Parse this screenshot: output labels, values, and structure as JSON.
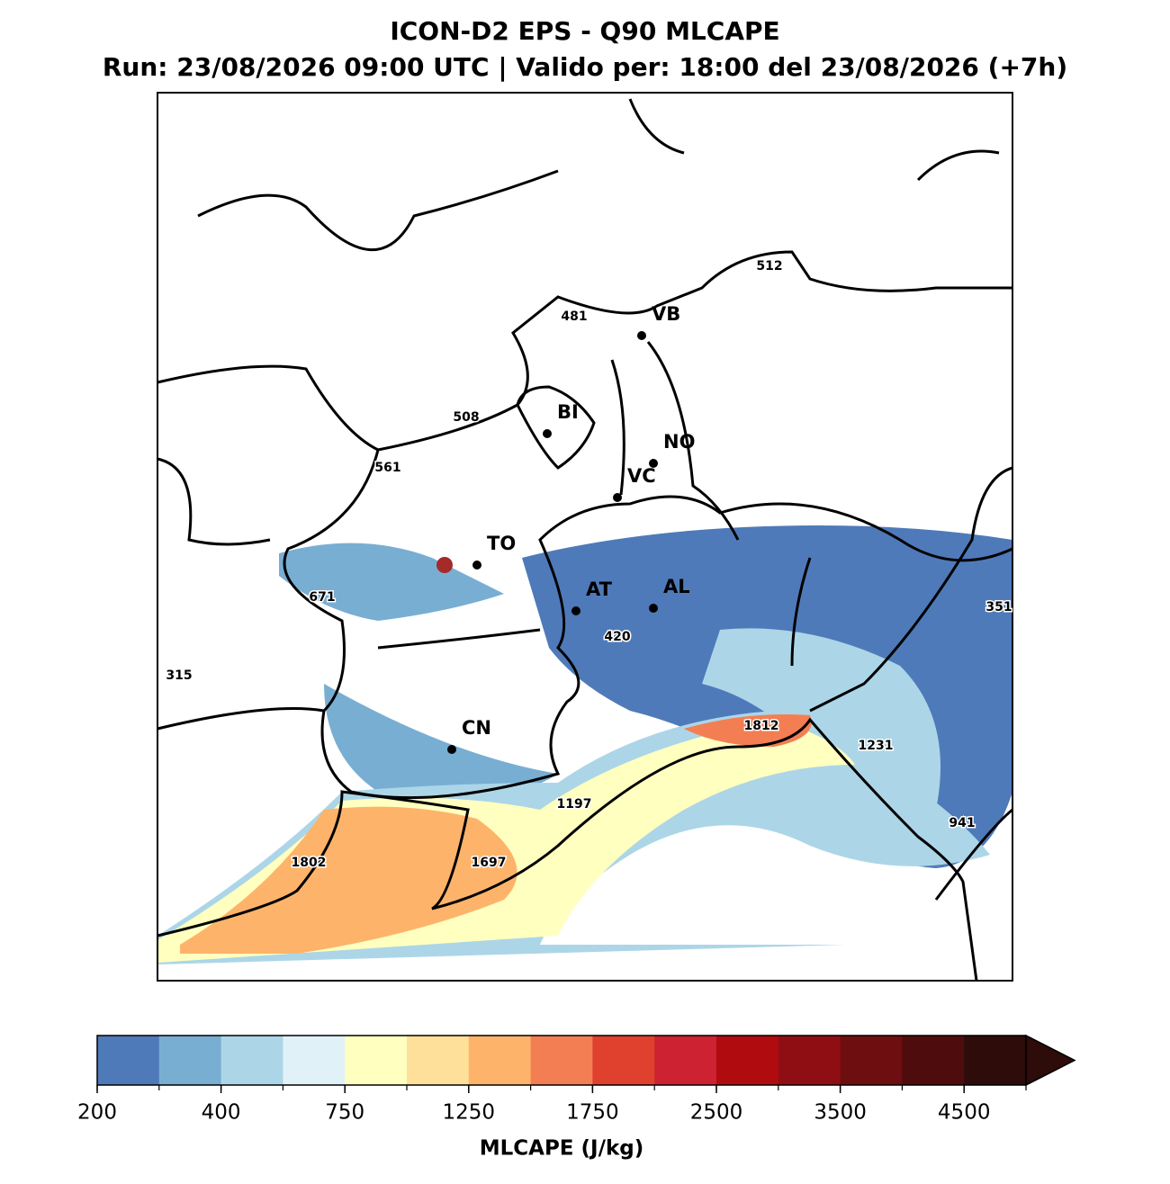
{
  "header": {
    "title": "ICON-D2 EPS - Q90 MLCAPE",
    "subtitle": "Run: 23/08/2026 09:00 UTC | Valido per: 18:00 del 23/08/2026 (+7h)"
  },
  "map": {
    "cities": [
      "VB",
      "BI",
      "NO",
      "VC",
      "TO",
      "AT",
      "AL",
      "CN"
    ],
    "values": [
      512,
      481,
      508,
      561,
      671,
      420,
      351,
      315,
      1812,
      1231,
      1197,
      1697,
      1802,
      941
    ]
  },
  "colorbar": {
    "label": "MLCAPE (J/kg)",
    "extend": "max",
    "levels": [
      200,
      300,
      400,
      500,
      750,
      1000,
      1250,
      1500,
      1750,
      2000,
      2500,
      3000,
      3500,
      4000,
      4500,
      5000
    ],
    "colors": [
      "#4f7ab9",
      "#79aed3",
      "#acd6e8",
      "#e0f1f8",
      "#ffffc0",
      "#fee09a",
      "#fdb46a",
      "#f47e54",
      "#e0402e",
      "#cc2232",
      "#b00c10",
      "#8f0e14",
      "#6e0e10",
      "#4e0c0c",
      "#2e0c0a"
    ],
    "ticks": [
      200,
      400,
      750,
      1250,
      1750,
      2500,
      3500,
      4500
    ]
  }
}
